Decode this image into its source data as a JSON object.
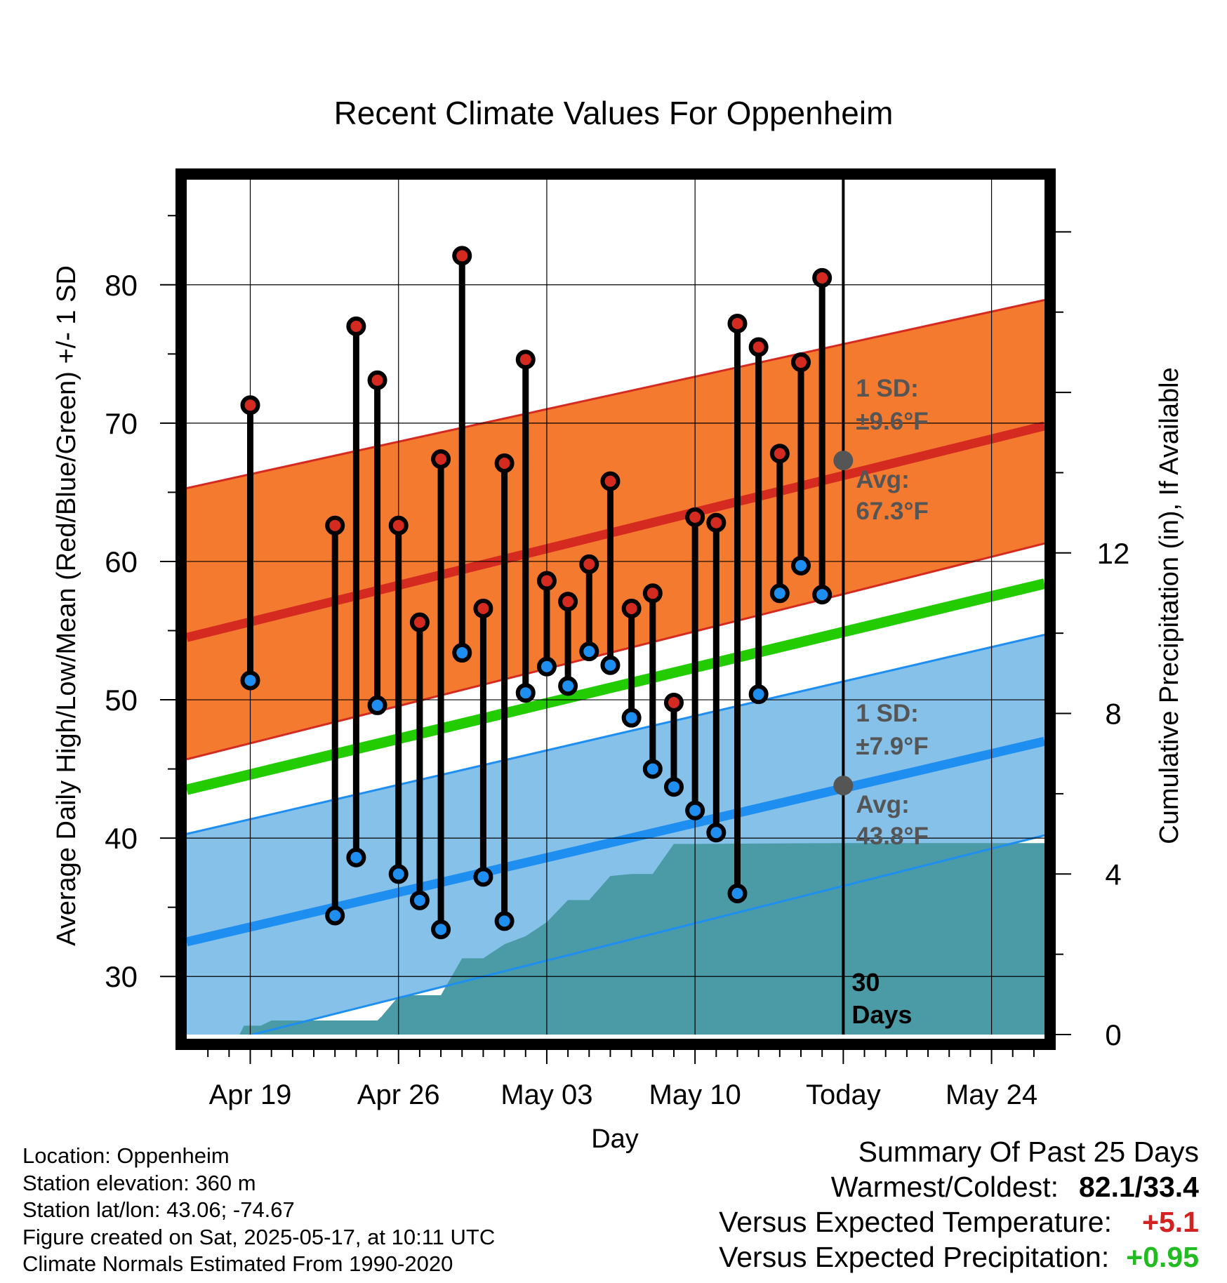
{
  "title": "Recent Climate Values For Oppenheim",
  "footer_left": {
    "location": "Location: Oppenheim",
    "elevation": "Station elevation: 360 m",
    "latlon": "Station lat/lon: 43.06; -74.67",
    "created": "Figure created on Sat, 2025-05-17, at 10:11 UTC",
    "normals": "Climate Normals Estimated From 1990-2020"
  },
  "summary": {
    "title": "Summary Of Past 25 Days",
    "warm_cold_label": "Warmest/Coldest:",
    "warm_cold_value": "82.1/33.4",
    "temp_label": "Versus Expected Temperature:",
    "temp_value": "+5.1",
    "temp_color": "#d32222",
    "precip_label": "Versus Expected Precipitation:",
    "precip_value": "+0.95",
    "precip_color": "#22bb22"
  },
  "chart_data": {
    "type": "line",
    "xlabel": "Day",
    "ylabel": "Average Daily High/Low/Mean (Red/Blue/Green) +/- 1 SD",
    "y2label": "Cumulative Precipitation (in), If Available",
    "xlim": [
      -3,
      37.5
    ],
    "ylim": [
      25.8,
      87.6
    ],
    "y2lim": [
      0,
      21.3
    ],
    "x_ticks": [
      {
        "x": 0,
        "label": "Apr 19"
      },
      {
        "x": 7,
        "label": "Apr 26"
      },
      {
        "x": 14,
        "label": "May 03"
      },
      {
        "x": 21,
        "label": "May 10"
      },
      {
        "x": 28,
        "label": "Today"
      },
      {
        "x": 35,
        "label": "May 24"
      }
    ],
    "y_ticks": [
      30,
      40,
      50,
      60,
      70,
      80
    ],
    "y2_ticks": [
      0,
      4,
      8,
      12
    ],
    "grid": true,
    "today_x": 28,
    "today_label_line1": "30",
    "today_label_line2": "Days",
    "colors": {
      "high_band": "#f47a30",
      "high_band_edge": "#d42a20",
      "high_mean": "#d42a20",
      "low_band": "#85c1e9",
      "low_band_edge": "#1e8ff0",
      "low_mean": "#1e8ff0",
      "mean_line": "#22cc00",
      "precip": "#4a9ba6",
      "annotation": "#555555",
      "high_dot": "#d42a20",
      "low_dot": "#1e8ff0"
    },
    "normals": {
      "x": [
        -3,
        37.5
      ],
      "high_mean": [
        54.5,
        69.8
      ],
      "high_upper": [
        65.3,
        78.9
      ],
      "high_lower": [
        45.7,
        61.3
      ],
      "low_mean": [
        32.5,
        47.0
      ],
      "low_upper": [
        40.3,
        54.7
      ],
      "low_lower": [
        24.6,
        40.2
      ],
      "mean": [
        43.5,
        58.4
      ]
    },
    "annotations": {
      "high_sd_line1": "1 SD:",
      "high_sd_line2": "±9.6°F",
      "high_avg_line1": "Avg:",
      "high_avg_line2": "67.3°F",
      "low_sd_line1": "1 SD:",
      "low_sd_line2": "±7.9°F",
      "low_avg_line1": "Avg:",
      "low_avg_line2": "43.8°F",
      "high_avg_value": 67.3,
      "low_avg_value": 43.8
    },
    "daily": [
      {
        "x": 0,
        "high": 71.3,
        "low": 51.4
      },
      {
        "x": 4,
        "high": 62.6,
        "low": 34.4
      },
      {
        "x": 5,
        "high": 77.0,
        "low": 38.6
      },
      {
        "x": 6,
        "high": 73.1,
        "low": 49.6
      },
      {
        "x": 7,
        "high": 62.6,
        "low": 37.4
      },
      {
        "x": 8,
        "high": 55.6,
        "low": 35.5
      },
      {
        "x": 9,
        "high": 67.4,
        "low": 33.4
      },
      {
        "x": 10,
        "high": 82.1,
        "low": 53.4
      },
      {
        "x": 11,
        "high": 56.6,
        "low": 37.2
      },
      {
        "x": 12,
        "high": 67.1,
        "low": 34.0
      },
      {
        "x": 13,
        "high": 74.6,
        "low": 50.5
      },
      {
        "x": 14,
        "high": 58.6,
        "low": 52.4
      },
      {
        "x": 15,
        "high": 57.1,
        "low": 51.0
      },
      {
        "x": 16,
        "high": 59.8,
        "low": 53.5
      },
      {
        "x": 17,
        "high": 65.8,
        "low": 52.5
      },
      {
        "x": 18,
        "high": 56.6,
        "low": 48.7
      },
      {
        "x": 19,
        "high": 57.7,
        "low": 45.0
      },
      {
        "x": 20,
        "high": 49.8,
        "low": 43.7
      },
      {
        "x": 21,
        "high": 63.2,
        "low": 42.0
      },
      {
        "x": 22,
        "high": 62.8,
        "low": 40.4
      },
      {
        "x": 23,
        "high": 77.2,
        "low": 36.0
      },
      {
        "x": 24,
        "high": 75.5,
        "low": 50.4
      },
      {
        "x": 25,
        "high": 67.8,
        "low": 57.7
      },
      {
        "x": 26,
        "high": 74.4,
        "low": 59.7
      },
      {
        "x": 27,
        "high": 80.5,
        "low": 57.6
      }
    ],
    "precip_steps": [
      [
        -3,
        0.0
      ],
      [
        -0.5,
        0.0
      ],
      [
        -0.3,
        0.22
      ],
      [
        0.5,
        0.22
      ],
      [
        1,
        0.35
      ],
      [
        6,
        0.35
      ],
      [
        6.2,
        0.45
      ],
      [
        7,
        0.95
      ],
      [
        7.5,
        0.98
      ],
      [
        9,
        0.98
      ],
      [
        10,
        1.9
      ],
      [
        11,
        1.9
      ],
      [
        12,
        2.25
      ],
      [
        13,
        2.45
      ],
      [
        14,
        2.8
      ],
      [
        15,
        3.35
      ],
      [
        16,
        3.35
      ],
      [
        17,
        3.95
      ],
      [
        18,
        4.0
      ],
      [
        19,
        4.0
      ],
      [
        20,
        4.75
      ],
      [
        21,
        4.75
      ],
      [
        28,
        4.77
      ],
      [
        37.5,
        4.77
      ]
    ]
  }
}
